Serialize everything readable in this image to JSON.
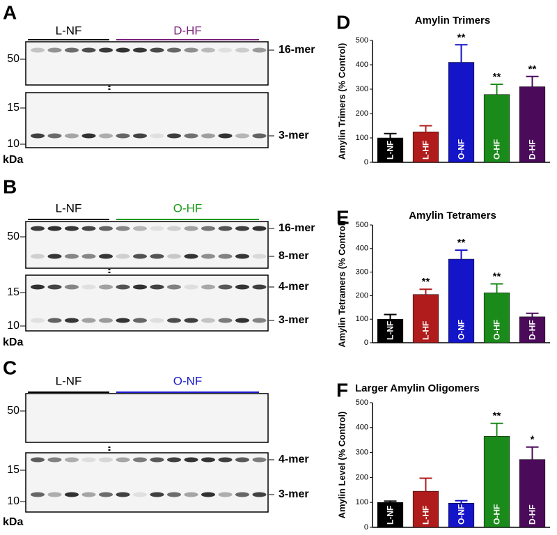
{
  "blots": [
    {
      "panel": "A",
      "groups": [
        {
          "name": "L-NF",
          "color": "#000000"
        },
        {
          "name": "D-HF",
          "color": "#7b1f7b"
        }
      ],
      "markers": [
        50,
        15,
        10
      ],
      "unit": "kDa",
      "bands": [
        "16-mer",
        "3-mer"
      ]
    },
    {
      "panel": "B",
      "groups": [
        {
          "name": "L-NF",
          "color": "#000000"
        },
        {
          "name": "O-HF",
          "color": "#1a9a1a"
        }
      ],
      "markers": [
        50,
        15,
        10
      ],
      "unit": "kDa",
      "bands": [
        "16-mer",
        "8-mer",
        "4-mer",
        "3-mer"
      ]
    },
    {
      "panel": "C",
      "groups": [
        {
          "name": "L-NF",
          "color": "#000000"
        },
        {
          "name": "O-NF",
          "color": "#1a1ad0"
        }
      ],
      "markers": [
        50,
        15,
        10
      ],
      "unit": "kDa",
      "bands": [
        "4-mer",
        "3-mer"
      ]
    }
  ],
  "chart_data": [
    {
      "type": "bar",
      "panel": "D",
      "title": "Amylin Trimers",
      "y_label": "Amylin Trimers (% Control)",
      "categories": [
        "L-NF",
        "L-HF",
        "O-NF",
        "O-HF",
        "D-HF"
      ],
      "values": [
        100,
        125,
        410,
        278,
        310
      ],
      "errors": [
        18,
        25,
        72,
        42,
        42
      ],
      "colors": [
        "#000000",
        "#b01c1c",
        "#1414c8",
        "#1a8a1a",
        "#4b0a5a"
      ],
      "significance": [
        null,
        null,
        "**",
        "**",
        "**"
      ],
      "ylim": [
        0,
        500
      ],
      "yticks": [
        0,
        100,
        200,
        300,
        400,
        500
      ]
    },
    {
      "type": "bar",
      "panel": "E",
      "title": "Amylin Tetramers",
      "y_label": "Amylin Tetramers (% Control)",
      "categories": [
        "L-NF",
        "L-HF",
        "O-NF",
        "O-HF",
        "D-HF"
      ],
      "values": [
        100,
        205,
        355,
        212,
        110
      ],
      "errors": [
        20,
        22,
        38,
        38,
        15
      ],
      "colors": [
        "#000000",
        "#b01c1c",
        "#1414c8",
        "#1a8a1a",
        "#4b0a5a"
      ],
      "significance": [
        null,
        "**",
        "**",
        "**",
        null
      ],
      "ylim": [
        0,
        500
      ],
      "yticks": [
        0,
        100,
        200,
        300,
        400,
        500
      ]
    },
    {
      "type": "bar",
      "panel": "F",
      "title": "Larger Amylin Oligomers",
      "y_label": "Amylin Level (% Control)",
      "categories": [
        "L-NF",
        "L-HF",
        "O-NF",
        "O-HF",
        "D-HF"
      ],
      "values": [
        100,
        145,
        97,
        365,
        272
      ],
      "errors": [
        5,
        52,
        10,
        52,
        50
      ],
      "colors": [
        "#000000",
        "#b01c1c",
        "#1414c8",
        "#1a8a1a",
        "#4b0a5a"
      ],
      "significance": [
        null,
        null,
        null,
        "**",
        "*"
      ],
      "ylim": [
        0,
        500
      ],
      "yticks": [
        0,
        100,
        200,
        300,
        400,
        500
      ]
    }
  ]
}
